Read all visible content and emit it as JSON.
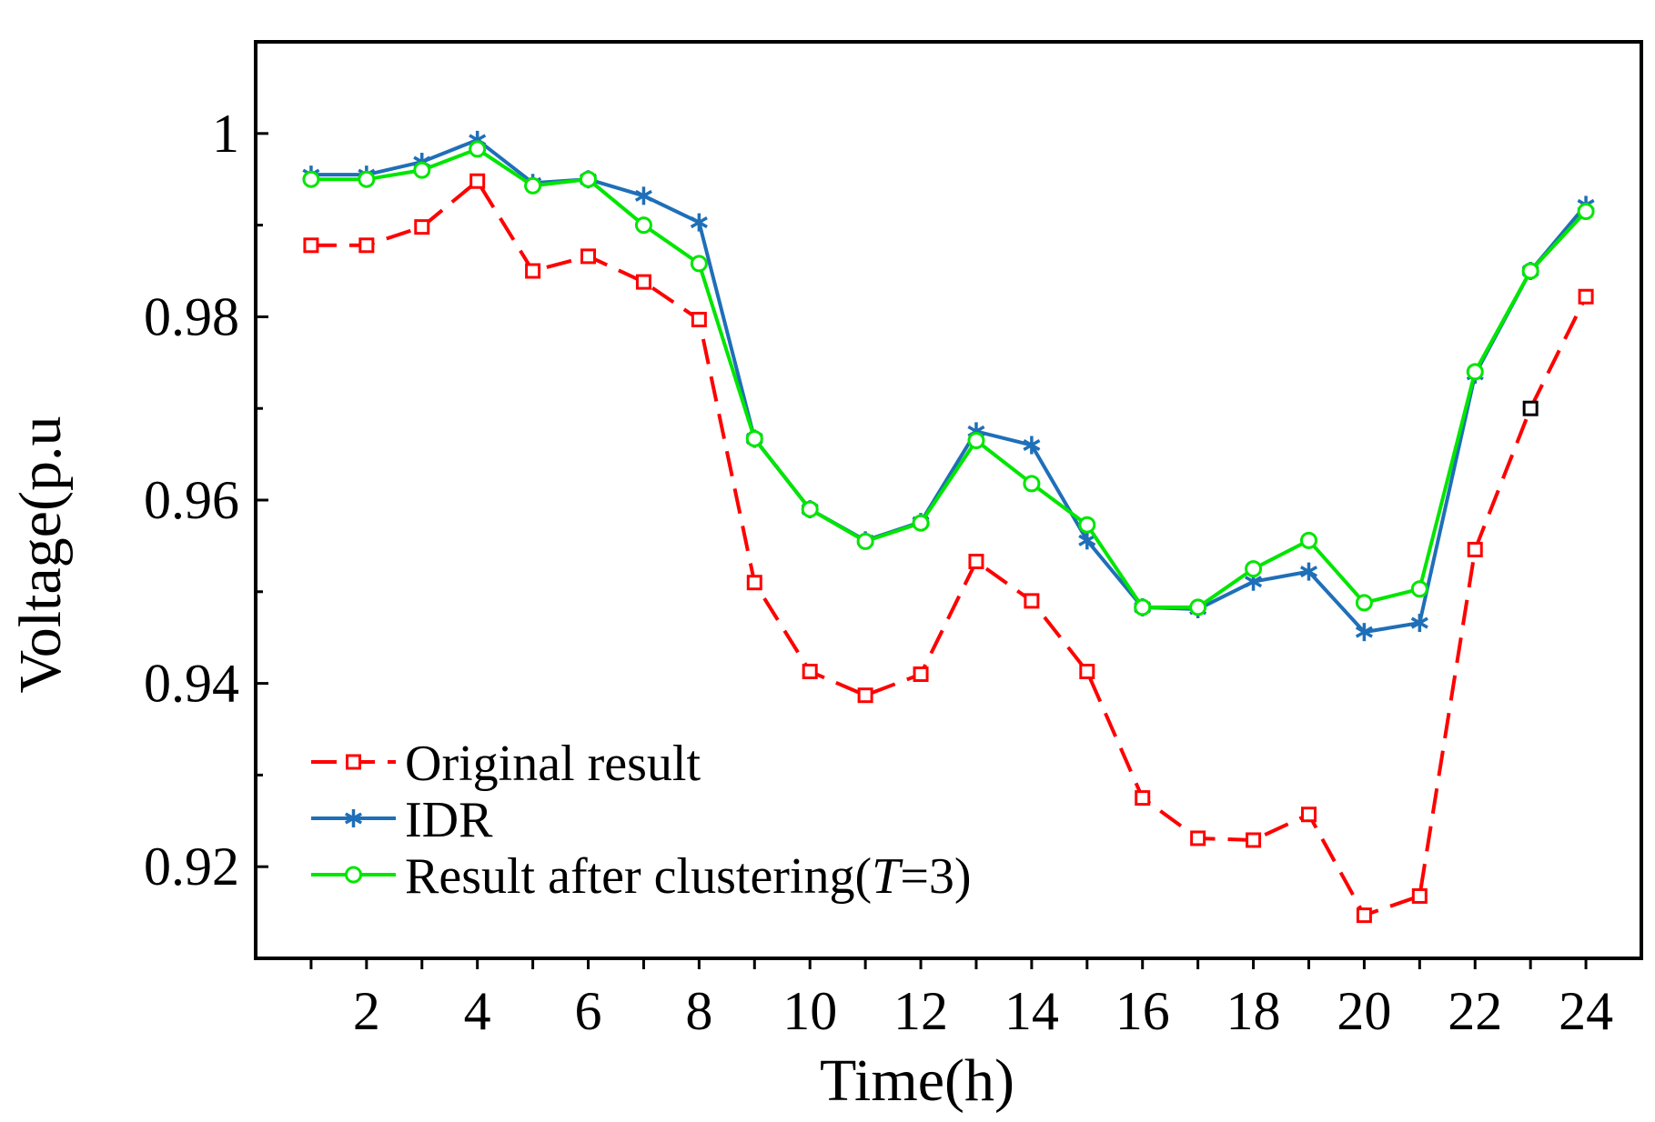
{
  "chart_data": {
    "type": "line",
    "title": "",
    "xlabel": "Time(h)",
    "ylabel": "Voltage(p.u",
    "xlim": [
      0,
      25
    ],
    "ylim": [
      0.91,
      1.01
    ],
    "x_ticks": [
      2,
      4,
      6,
      8,
      10,
      12,
      14,
      16,
      18,
      20,
      22,
      24
    ],
    "x_tick_labels": [
      "2",
      "4",
      "6",
      "8",
      "10",
      "12",
      "14",
      "16",
      "18",
      "20",
      "22",
      "24"
    ],
    "y_ticks": [
      0.92,
      0.94,
      0.96,
      0.98,
      1.0
    ],
    "y_tick_labels": [
      "0.92",
      "0.94",
      "0.96",
      "0.98",
      "1"
    ],
    "y_minor_ticks": [
      0.93,
      0.95,
      0.97,
      0.99
    ],
    "grid": false,
    "legend_position": "bottom-left",
    "x": [
      1,
      2,
      3,
      4,
      5,
      6,
      7,
      8,
      9,
      10,
      11,
      12,
      13,
      14,
      15,
      16,
      17,
      18,
      19,
      20,
      21,
      22,
      23,
      24
    ],
    "series": [
      {
        "name": "Original result",
        "color": "#ff0000",
        "style": "dashed",
        "marker": "square",
        "values": [
          0.9878,
          0.9878,
          0.9898,
          0.9948,
          0.985,
          0.9866,
          0.9838,
          0.9797,
          0.951,
          0.9413,
          0.9387,
          0.941,
          0.9533,
          0.949,
          0.9413,
          0.9275,
          0.9231,
          0.9229,
          0.9257,
          0.9147,
          0.9168,
          0.9546,
          0.97,
          0.9822
        ]
      },
      {
        "name": "IDR",
        "color": "#1f6fb8",
        "style": "solid",
        "marker": "star",
        "values": [
          0.9955,
          0.9955,
          0.9969,
          0.9993,
          0.9946,
          0.995,
          0.9932,
          0.9903,
          0.9667,
          0.959,
          0.9556,
          0.9576,
          0.9675,
          0.966,
          0.9556,
          0.9483,
          0.9481,
          0.9511,
          0.9522,
          0.9456,
          0.9466,
          0.9737,
          0.985,
          0.9922
        ]
      },
      {
        "name": "Result after clustering(T=3)",
        "name_parts": [
          "Result after clustering(",
          "T",
          "=3)"
        ],
        "color": "#00e600",
        "style": "solid",
        "marker": "circle",
        "values": [
          0.995,
          0.995,
          0.996,
          0.9983,
          0.9943,
          0.995,
          0.99,
          0.9858,
          0.9667,
          0.959,
          0.9555,
          0.9575,
          0.9665,
          0.9618,
          0.9573,
          0.9483,
          0.9483,
          0.9525,
          0.9556,
          0.9488,
          0.9503,
          0.974,
          0.985,
          0.9915
        ]
      }
    ],
    "annotations": [
      {
        "type": "marker",
        "shape": "square",
        "color": "#000000",
        "x": 23,
        "y": 0.97
      }
    ]
  }
}
